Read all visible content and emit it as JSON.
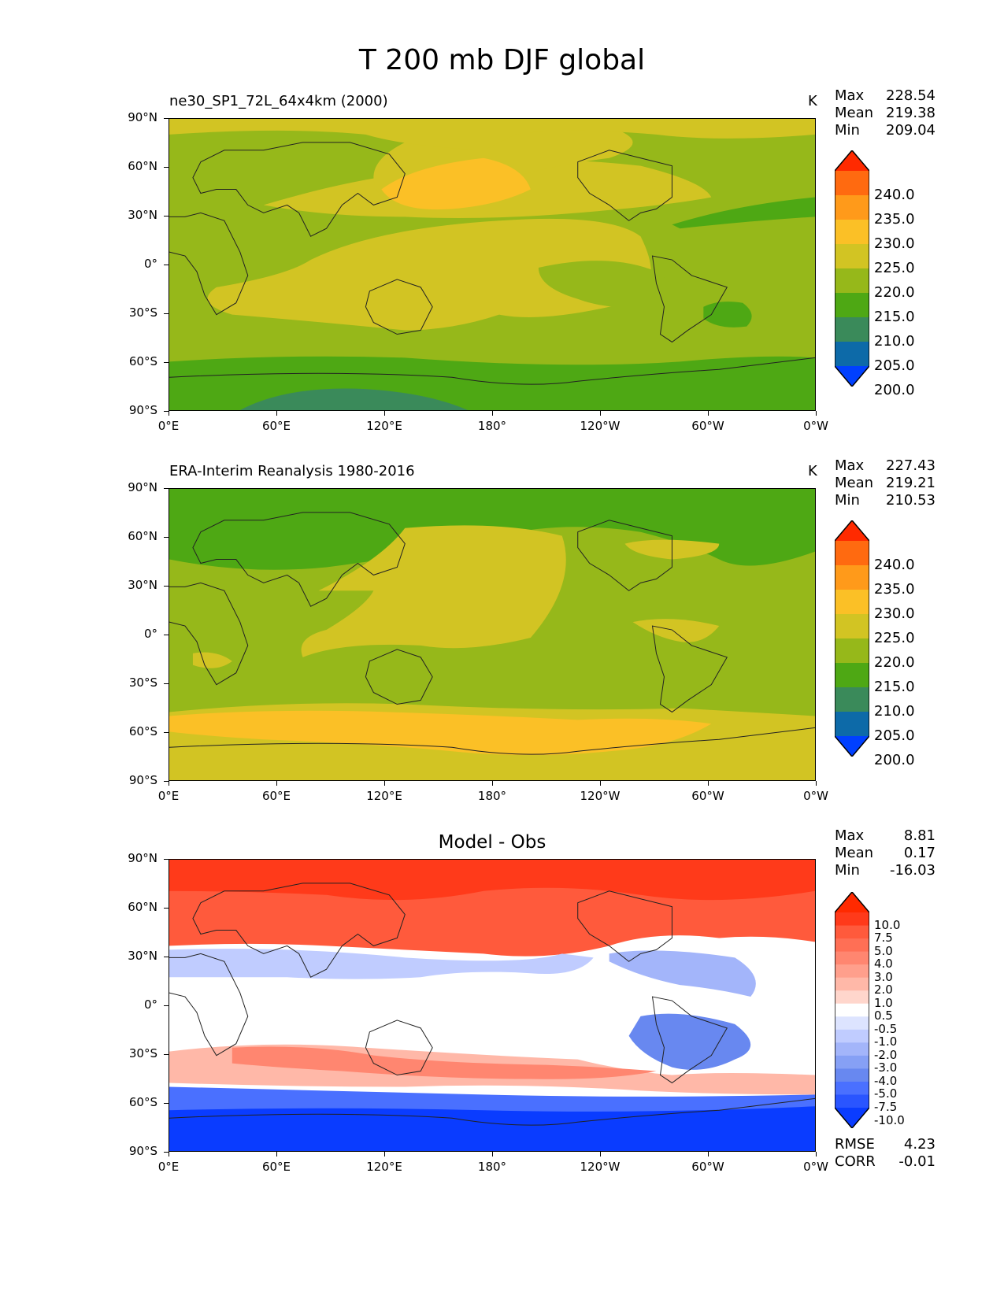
{
  "figure": {
    "title": "T 200 mb DJF global"
  },
  "axes": {
    "y_ticks": [
      "90°N",
      "60°N",
      "30°N",
      "0°",
      "30°S",
      "60°S",
      "90°S"
    ],
    "x_ticks": [
      "0°E",
      "60°E",
      "120°E",
      "180°",
      "120°W",
      "60°W",
      "0°W"
    ]
  },
  "panels": [
    {
      "title": "ne30_SP1_72L_64x4km (2000)",
      "units": "K",
      "stats": [
        {
          "label": "Max",
          "value": "228.54"
        },
        {
          "label": "Mean",
          "value": "219.38"
        },
        {
          "label": "Min",
          "value": "209.04"
        }
      ],
      "colorbar": {
        "labels": [
          "240.0",
          "235.0",
          "230.0",
          "225.0",
          "220.0",
          "215.0",
          "210.0",
          "205.0",
          "200.0"
        ],
        "colors": [
          "#ff2a00",
          "#ff6a10",
          "#ff9a1a",
          "#fbc026",
          "#d2c423",
          "#96b81a",
          "#4ea814",
          "#3a8a5a",
          "#0d6aa8",
          "#0040ff"
        ]
      }
    },
    {
      "title": "ERA-Interim Reanalysis 1980-2016",
      "units": "K",
      "stats": [
        {
          "label": "Max",
          "value": "227.43"
        },
        {
          "label": "Mean",
          "value": "219.21"
        },
        {
          "label": "Min",
          "value": "210.53"
        }
      ],
      "colorbar": {
        "labels": [
          "240.0",
          "235.0",
          "230.0",
          "225.0",
          "220.0",
          "215.0",
          "210.0",
          "205.0",
          "200.0"
        ],
        "colors": [
          "#ff2a00",
          "#ff6a10",
          "#ff9a1a",
          "#fbc026",
          "#d2c423",
          "#96b81a",
          "#4ea814",
          "#3a8a5a",
          "#0d6aa8",
          "#0040ff"
        ]
      }
    },
    {
      "title": "Model - Obs",
      "stats": [
        {
          "label": "Max",
          "value": "8.81"
        },
        {
          "label": "Mean",
          "value": "0.17"
        },
        {
          "label": "Min",
          "value": "-16.03"
        }
      ],
      "colorbar": {
        "labels": [
          "10.0",
          "7.5",
          "5.0",
          "4.0",
          "3.0",
          "2.0",
          "1.0",
          "0.5",
          "-0.5",
          "-1.0",
          "-2.0",
          "-3.0",
          "-4.0",
          "-5.0",
          "-7.5",
          "-10.0"
        ],
        "colors": [
          "#ff2a00",
          "#ff3a1a",
          "#ff5a3c",
          "#ff6f55",
          "#ff8670",
          "#ff9f8c",
          "#ffb8a8",
          "#ffd6cc",
          "#ffffff",
          "#dde4ff",
          "#c0ccff",
          "#a3b5fa",
          "#86a0f5",
          "#6888f0",
          "#4a70ff",
          "#2a55ff",
          "#0a3cff"
        ]
      },
      "footer": [
        {
          "label": "RMSE",
          "value": "4.23"
        },
        {
          "label": "CORR",
          "value": "-0.01"
        }
      ]
    }
  ],
  "chart_data": [
    {
      "type": "heatmap",
      "title": "ne30_SP1_72L_64x4km (2000)",
      "variable": "T 200 mb DJF",
      "units": "K",
      "xlim": [
        0,
        360
      ],
      "ylim": [
        -90,
        90
      ],
      "levels": [
        200,
        205,
        210,
        215,
        220,
        225,
        230,
        235,
        240
      ],
      "stats": {
        "max": 228.54,
        "mean": 219.38,
        "min": 209.04
      }
    },
    {
      "type": "heatmap",
      "title": "ERA-Interim Reanalysis 1980-2016",
      "variable": "T 200 mb DJF",
      "units": "K",
      "xlim": [
        0,
        360
      ],
      "ylim": [
        -90,
        90
      ],
      "levels": [
        200,
        205,
        210,
        215,
        220,
        225,
        230,
        235,
        240
      ],
      "stats": {
        "max": 227.43,
        "mean": 219.21,
        "min": 210.53
      }
    },
    {
      "type": "heatmap",
      "title": "Model - Obs",
      "variable": "T 200 mb DJF difference",
      "xlim": [
        0,
        360
      ],
      "ylim": [
        -90,
        90
      ],
      "levels": [
        -10,
        -7.5,
        -5,
        -4,
        -3,
        -2,
        -1,
        -0.5,
        0.5,
        1,
        2,
        3,
        4,
        5,
        7.5,
        10
      ],
      "stats": {
        "max": 8.81,
        "mean": 0.17,
        "min": -16.03,
        "rmse": 4.23,
        "corr": -0.01
      }
    }
  ]
}
